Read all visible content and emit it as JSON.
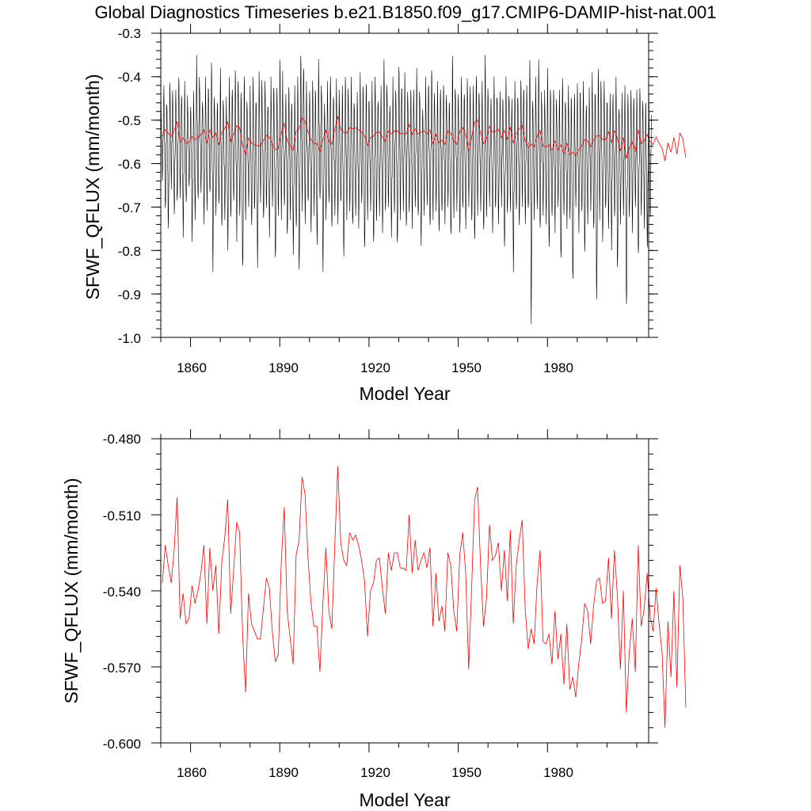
{
  "title": "Global Diagnostics Timeseries b.e21.B1850.f09_g17.CMIP6-DAMIP-hist-nat.001",
  "chart_data": [
    {
      "type": "line",
      "xlabel": "Model Year",
      "ylabel": "SFWF_QFLUX (mm/month)",
      "xlim": [
        1850,
        2014
      ],
      "ylim": [
        -1.0,
        -0.3
      ],
      "x_ticks": [
        1860,
        1890,
        1920,
        1950,
        1980
      ],
      "x_tick_labels": [
        "1860",
        "1890",
        "1920",
        "1950",
        "1980"
      ],
      "y_ticks": [
        -1.0,
        -0.9,
        -0.8,
        -0.7,
        -0.6,
        -0.5,
        -0.4,
        -0.3
      ],
      "y_tick_labels": [
        "-1.0",
        "-0.9",
        "-0.8",
        "-0.7",
        "-0.6",
        "-0.5",
        "-0.4",
        "-0.3"
      ],
      "grid": false,
      "series": [
        {
          "color": "#000000",
          "resolution": "monthly",
          "monthly_max_by_year": [
            -0.44,
            -0.42,
            -0.46,
            -0.4,
            -0.45,
            -0.43,
            -0.39,
            -0.44,
            -0.41,
            -0.47,
            -0.45,
            -0.43,
            -0.35,
            -0.42,
            -0.44,
            -0.4,
            -0.43,
            -0.35,
            -0.45,
            -0.46,
            -0.38,
            -0.45,
            -0.44,
            -0.4,
            -0.43,
            -0.36,
            -0.41,
            -0.45,
            -0.39,
            -0.46,
            -0.42,
            -0.4,
            -0.44,
            -0.38,
            -0.43,
            -0.41,
            -0.45,
            -0.4,
            -0.43,
            -0.42,
            -0.34,
            -0.46,
            -0.44,
            -0.41,
            -0.45,
            -0.42,
            -0.4,
            -0.33,
            -0.38,
            -0.45,
            -0.43,
            -0.39,
            -0.44,
            -0.36,
            -0.42,
            -0.45,
            -0.41,
            -0.4,
            -0.43,
            -0.4,
            -0.46,
            -0.42,
            -0.38,
            -0.44,
            -0.4,
            -0.46,
            -0.42,
            -0.39,
            -0.43,
            -0.4,
            -0.45,
            -0.41,
            -0.4,
            -0.44,
            -0.42,
            -0.36,
            -0.43,
            -0.45,
            -0.4,
            -0.44,
            -0.36,
            -0.42,
            -0.39,
            -0.45,
            -0.41,
            -0.43,
            -0.38,
            -0.44,
            -0.46,
            -0.4,
            -0.42,
            -0.37,
            -0.45,
            -0.41,
            -0.43,
            -0.4,
            -0.44,
            -0.46,
            -0.35,
            -0.42,
            -0.44,
            -0.4,
            -0.43,
            -0.39,
            -0.45,
            -0.42,
            -0.38,
            -0.44,
            -0.41,
            -0.35,
            -0.43,
            -0.45,
            -0.4,
            -0.44,
            -0.42,
            -0.46,
            -0.4,
            -0.43,
            -0.44,
            -0.41,
            -0.45,
            -0.39,
            -0.43,
            -0.42,
            -0.35,
            -0.44,
            -0.4,
            -0.36,
            -0.45,
            -0.42,
            -0.38,
            -0.44,
            -0.41,
            -0.45,
            -0.43,
            -0.4,
            -0.44,
            -0.42,
            -0.46,
            -0.43,
            -0.4,
            -0.44,
            -0.41,
            -0.45,
            -0.42,
            -0.39,
            -0.44,
            -0.36,
            -0.43,
            -0.41,
            -0.45,
            -0.42,
            -0.44,
            -0.4,
            -0.46,
            -0.43,
            -0.42,
            -0.44,
            -0.41,
            -0.45,
            -0.43,
            -0.42,
            -0.44,
            -0.46,
            -0.43
          ],
          "monthly_min_by_year": [
            -0.64,
            -0.72,
            -0.75,
            -0.66,
            -0.72,
            -0.7,
            -0.68,
            -0.77,
            -0.7,
            -0.66,
            -0.78,
            -0.73,
            -0.7,
            -0.67,
            -0.74,
            -0.71,
            -0.68,
            -0.85,
            -0.72,
            -0.7,
            -0.76,
            -0.73,
            -0.8,
            -0.74,
            -0.69,
            -0.78,
            -0.72,
            -0.86,
            -0.73,
            -0.7,
            -0.75,
            -0.72,
            -0.84,
            -0.69,
            -0.74,
            -0.71,
            -0.77,
            -0.7,
            -0.84,
            -0.72,
            -0.73,
            -0.7,
            -0.78,
            -0.73,
            -0.81,
            -0.76,
            -0.86,
            -0.71,
            -0.74,
            -0.7,
            -0.76,
            -0.72,
            -0.79,
            -0.7,
            -0.85,
            -0.73,
            -0.7,
            -0.76,
            -0.72,
            -0.74,
            -0.7,
            -0.82,
            -0.73,
            -0.71,
            -0.76,
            -0.72,
            -0.75,
            -0.7,
            -0.81,
            -0.73,
            -0.71,
            -0.8,
            -0.74,
            -0.72,
            -0.76,
            -0.73,
            -0.7,
            -0.77,
            -0.72,
            -0.8,
            -0.73,
            -0.71,
            -0.76,
            -0.72,
            -0.75,
            -0.7,
            -0.74,
            -0.79,
            -0.72,
            -0.7,
            -0.76,
            -0.73,
            -0.71,
            -0.77,
            -0.72,
            -0.74,
            -0.7,
            -0.78,
            -0.73,
            -0.71,
            -0.76,
            -0.72,
            -0.75,
            -0.7,
            -0.74,
            -0.79,
            -0.72,
            -0.71,
            -0.77,
            -0.73,
            -0.7,
            -0.76,
            -0.72,
            -0.74,
            -0.7,
            -0.8,
            -0.73,
            -0.71,
            -0.85,
            -0.72,
            -0.75,
            -0.7,
            -0.74,
            -0.72,
            -0.97,
            -0.73,
            -0.71,
            -0.77,
            -0.72,
            -0.74,
            -0.81,
            -0.73,
            -0.76,
            -0.7,
            -0.84,
            -0.72,
            -0.75,
            -0.73,
            -0.89,
            -0.7,
            -0.76,
            -0.72,
            -0.82,
            -0.74,
            -0.71,
            -0.77,
            -0.92,
            -0.73,
            -0.78,
            -0.72,
            -0.75,
            -0.8,
            -0.73,
            -0.86,
            -0.74,
            -0.72,
            -0.95,
            -0.73,
            -0.76,
            -0.7,
            -0.83,
            -0.72,
            -0.75,
            -0.8,
            -0.74,
            -0.79,
            -0.72
          ]
        },
        {
          "color": "#ff0000",
          "resolution": "annual",
          "same_as": "annual_mean"
        }
      ]
    },
    {
      "type": "line",
      "xlabel": "Model Year",
      "ylabel": "SFWF_QFLUX (mm/month)",
      "xlim": [
        1850,
        2014
      ],
      "ylim": [
        -0.6,
        -0.48
      ],
      "x_ticks": [
        1860,
        1890,
        1920,
        1950,
        1980
      ],
      "x_tick_labels": [
        "1860",
        "1890",
        "1920",
        "1950",
        "1980"
      ],
      "y_ticks": [
        -0.6,
        -0.57,
        -0.54,
        -0.51,
        -0.48
      ],
      "y_tick_labels": [
        "-0.600",
        "-0.570",
        "-0.540",
        "-0.510",
        "-0.480"
      ],
      "grid": false,
      "series": [
        {
          "color": "#ff0000",
          "x_start": 1850,
          "annual_mean": [
            -0.537,
            -0.522,
            -0.53,
            -0.537,
            -0.524,
            -0.503,
            -0.551,
            -0.541,
            -0.553,
            -0.551,
            -0.538,
            -0.545,
            -0.54,
            -0.533,
            -0.522,
            -0.553,
            -0.523,
            -0.54,
            -0.53,
            -0.557,
            -0.529,
            -0.519,
            -0.504,
            -0.549,
            -0.532,
            -0.513,
            -0.517,
            -0.557,
            -0.58,
            -0.541,
            -0.553,
            -0.556,
            -0.559,
            -0.559,
            -0.547,
            -0.535,
            -0.539,
            -0.556,
            -0.568,
            -0.565,
            -0.529,
            -0.507,
            -0.548,
            -0.559,
            -0.569,
            -0.526,
            -0.52,
            -0.495,
            -0.502,
            -0.527,
            -0.545,
            -0.554,
            -0.554,
            -0.572,
            -0.545,
            -0.523,
            -0.548,
            -0.555,
            -0.522,
            -0.491,
            -0.521,
            -0.528,
            -0.53,
            -0.517,
            -0.52,
            -0.518,
            -0.522,
            -0.528,
            -0.536,
            -0.558,
            -0.54,
            -0.537,
            -0.528,
            -0.527,
            -0.539,
            -0.549,
            -0.525,
            -0.532,
            -0.525,
            -0.525,
            -0.531,
            -0.531,
            -0.532,
            -0.51,
            -0.533,
            -0.52,
            -0.532,
            -0.528,
            -0.525,
            -0.531,
            -0.523,
            -0.554,
            -0.533,
            -0.552,
            -0.546,
            -0.556,
            -0.525,
            -0.53,
            -0.548,
            -0.556,
            -0.526,
            -0.517,
            -0.533,
            -0.571,
            -0.539,
            -0.504,
            -0.499,
            -0.53,
            -0.554,
            -0.543,
            -0.514,
            -0.528,
            -0.526,
            -0.521,
            -0.54,
            -0.524,
            -0.544,
            -0.516,
            -0.553,
            -0.53,
            -0.52,
            -0.512,
            -0.547,
            -0.563,
            -0.555,
            -0.561,
            -0.537,
            -0.524,
            -0.56,
            -0.561,
            -0.557,
            -0.569,
            -0.548,
            -0.567,
            -0.557,
            -0.577,
            -0.553,
            -0.579,
            -0.574,
            -0.582,
            -0.569,
            -0.559,
            -0.545,
            -0.548,
            -0.561,
            -0.546,
            -0.536,
            -0.535,
            -0.545,
            -0.544,
            -0.527,
            -0.551,
            -0.524,
            -0.542,
            -0.571,
            -0.54,
            -0.588,
            -0.564,
            -0.551,
            -0.572,
            -0.522,
            -0.554,
            -0.547,
            -0.533,
            -0.55,
            -0.556,
            -0.539,
            -0.553,
            -0.564,
            -0.594,
            -0.552,
            -0.574,
            -0.54,
            -0.578,
            -0.53,
            -0.543,
            -0.586
          ]
        }
      ]
    }
  ]
}
